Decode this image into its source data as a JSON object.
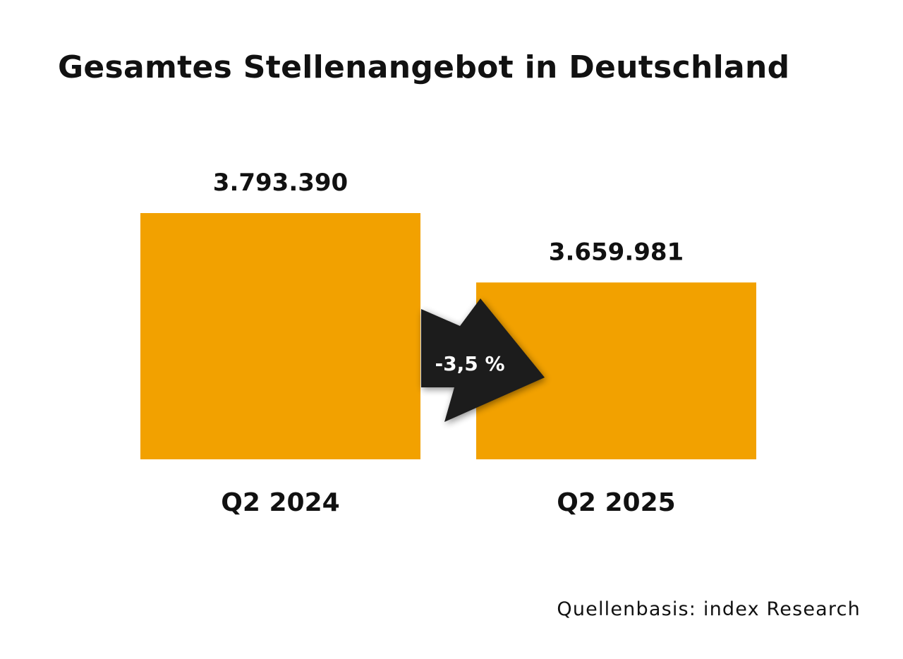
{
  "chart_data": {
    "type": "bar",
    "title": "Gesamtes Stellenangebot in Deutschland",
    "categories": [
      "Q2 2024",
      "Q2 2025"
    ],
    "values": [
      3793390,
      3659981
    ],
    "value_labels": [
      "3.793.390",
      "3.659.981"
    ],
    "change_label": "-3,5 %",
    "xlabel": "",
    "ylabel": "",
    "grid": false,
    "source": "Quellenbasis: index Research",
    "colors": {
      "bar": "#F2A100",
      "arrow": "#1E1E1E",
      "text": "#111111",
      "arrow_text": "#FFFFFF"
    }
  }
}
